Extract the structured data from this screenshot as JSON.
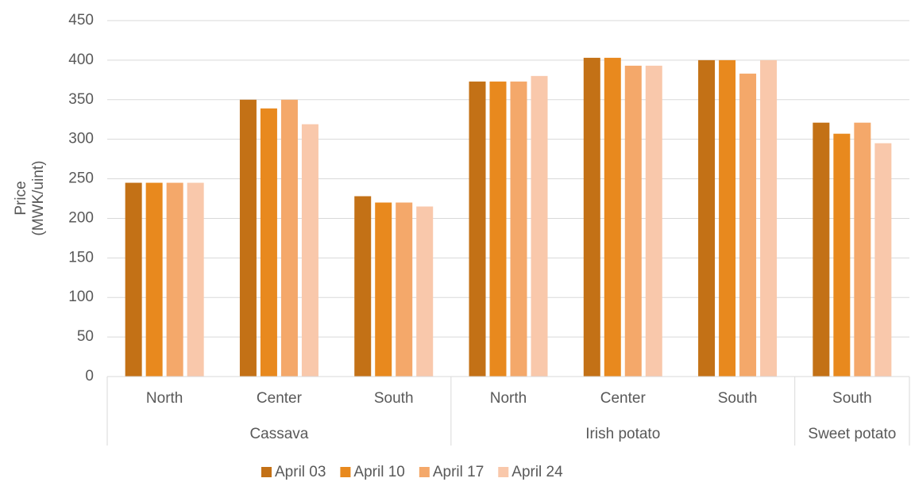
{
  "chart_data": {
    "type": "bar",
    "ylabel": [
      "Price",
      "(MWK/uint)"
    ],
    "groups": [
      {
        "name": "Cassava",
        "categories": [
          "North",
          "Center",
          "South"
        ]
      },
      {
        "name": "Irish potato",
        "categories": [
          "North",
          "Center",
          "South"
        ]
      },
      {
        "name": "Sweet potato",
        "categories": [
          "South"
        ]
      }
    ],
    "series": [
      {
        "name": "April 03",
        "color": "#C37116",
        "values": [
          245,
          350,
          228,
          373,
          403,
          400,
          321
        ]
      },
      {
        "name": "April 10",
        "color": "#E8891E",
        "values": [
          245,
          339,
          220,
          373,
          403,
          400,
          307
        ]
      },
      {
        "name": "April 17",
        "color": "#F4A86A",
        "values": [
          245,
          350,
          220,
          373,
          393,
          383,
          321
        ]
      },
      {
        "name": "April 24",
        "color": "#F9C8AB",
        "values": [
          245,
          319,
          215,
          380,
          393,
          400,
          295
        ]
      }
    ],
    "ylim": [
      0,
      450
    ],
    "yticks": [
      0,
      50,
      100,
      150,
      200,
      250,
      300,
      350,
      400,
      450
    ],
    "grid": true,
    "legend": "bottom"
  }
}
